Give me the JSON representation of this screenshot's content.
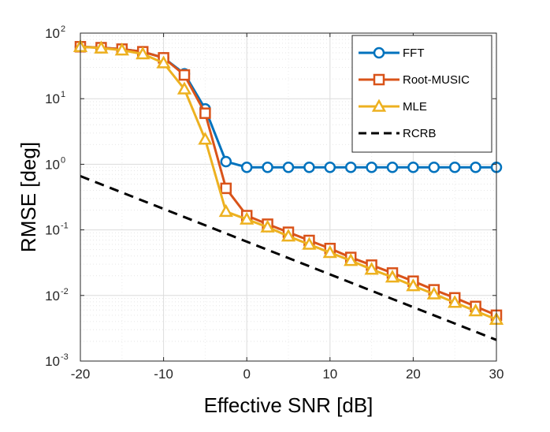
{
  "chart_data": {
    "type": "line",
    "title": "",
    "xlabel": "Effective SNR [dB]",
    "ylabel": "RMSE [deg]",
    "xlim": [
      -20,
      30
    ],
    "ylim": [
      0.001,
      100
    ],
    "yscale": "log",
    "grid": true,
    "legend_position": "top-right",
    "x": [
      -20,
      -17.5,
      -15,
      -12.5,
      -10,
      -7.5,
      -5,
      -2.5,
      0,
      2.5,
      5,
      7.5,
      10,
      12.5,
      15,
      17.5,
      20,
      22.5,
      25,
      27.5,
      30
    ],
    "x_ticks": [
      {
        "value": -20,
        "label": "-20"
      },
      {
        "value": -10,
        "label": "-10"
      },
      {
        "value": 0,
        "label": "0"
      },
      {
        "value": 10,
        "label": "10"
      },
      {
        "value": 20,
        "label": "20"
      },
      {
        "value": 30,
        "label": "30"
      }
    ],
    "y_ticks": [
      {
        "value": 100,
        "base": "10",
        "exp": "2"
      },
      {
        "value": 10,
        "base": "10",
        "exp": "1"
      },
      {
        "value": 1,
        "base": "10",
        "exp": "0"
      },
      {
        "value": 0.1,
        "base": "10",
        "exp": "-1"
      },
      {
        "value": 0.01,
        "base": "10",
        "exp": "-2"
      },
      {
        "value": 0.001,
        "base": "10",
        "exp": "-3"
      }
    ],
    "series": [
      {
        "name": "FFT",
        "color": "#0072BD",
        "marker": "circle",
        "dash": "solid",
        "values": [
          62,
          60,
          57,
          52,
          42,
          24,
          7,
          1.1,
          0.9,
          0.9,
          0.9,
          0.9,
          0.9,
          0.9,
          0.9,
          0.9,
          0.9,
          0.9,
          0.9,
          0.9,
          0.9
        ]
      },
      {
        "name": "Root-MUSIC",
        "color": "#D95319",
        "marker": "square",
        "dash": "solid",
        "values": [
          62,
          60,
          57,
          52,
          42,
          23,
          6,
          0.43,
          0.165,
          0.122,
          0.092,
          0.069,
          0.052,
          0.038,
          0.029,
          0.022,
          0.0165,
          0.0122,
          0.0092,
          0.0068,
          0.005
        ]
      },
      {
        "name": "MLE",
        "color": "#EDB120",
        "marker": "triangle",
        "dash": "solid",
        "values": [
          62,
          59,
          55,
          48,
          35,
          14,
          2.4,
          0.19,
          0.145,
          0.11,
          0.08,
          0.06,
          0.045,
          0.034,
          0.025,
          0.019,
          0.014,
          0.0105,
          0.0078,
          0.0058,
          0.0043
        ]
      },
      {
        "name": "RCRB",
        "color": "#000000",
        "marker": "none",
        "dash": "dashed",
        "x": [
          -20,
          30
        ],
        "values": [
          0.66,
          0.0021
        ]
      }
    ]
  }
}
